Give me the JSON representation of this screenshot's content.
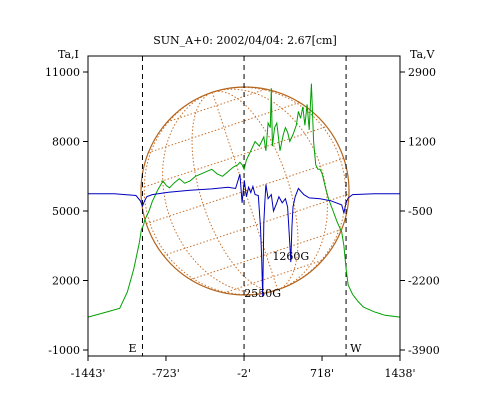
{
  "chart_data": {
    "type": "line",
    "title": "SUN_A+0: 2002/04/04: 2.67[cm]",
    "left_axis_label": "Ta,I",
    "right_axis_label": "Ta,V",
    "x_ticks": [
      {
        "value": -1443,
        "label": "-1443'"
      },
      {
        "value": -723,
        "label": "-723'"
      },
      {
        "value": -2,
        "label": "-2'"
      },
      {
        "value": 718,
        "label": "718'"
      },
      {
        "value": 1438,
        "label": "1438'"
      }
    ],
    "left_ticks": [
      {
        "value": -1000,
        "label": "-1000"
      },
      {
        "value": 2000,
        "label": "2000"
      },
      {
        "value": 5000,
        "label": "5000"
      },
      {
        "value": 8000,
        "label": "8000"
      },
      {
        "value": 11000,
        "label": "11000"
      }
    ],
    "right_ticks": [
      {
        "value": -3900,
        "label": "-3900"
      },
      {
        "value": -2200,
        "label": "-2200"
      },
      {
        "value": -500,
        "label": "-500"
      },
      {
        "value": 1200,
        "label": "1200"
      },
      {
        "value": 2900,
        "label": "2900"
      }
    ],
    "xlim": [
      -1443,
      1438
    ],
    "ylim_left": [
      -1000,
      11000
    ],
    "ylim_right": [
      -3900,
      2900
    ],
    "limb_markers": [
      {
        "x": -940,
        "label": "E"
      },
      {
        "x": 940,
        "label": "W"
      }
    ],
    "center_line_x": -2,
    "grid": false,
    "annotations": [
      {
        "text": "2550G",
        "x": 170,
        "y_right": -2600
      },
      {
        "text": "1260G",
        "x": 430,
        "y_right": -1700
      }
    ],
    "series": [
      {
        "axis": "left",
        "color": "#00a000",
        "x": [
          -1443,
          -1300,
          -1150,
          -1080,
          -1020,
          -970,
          -950,
          -930,
          -920,
          -880,
          -850,
          -800,
          -750,
          -720,
          -690,
          -650,
          -600,
          -550,
          -500,
          -450,
          -400,
          -350,
          -300,
          -250,
          -200,
          -150,
          -100,
          -60,
          -40,
          -20,
          -2,
          20,
          40,
          60,
          100,
          140,
          180,
          200,
          220,
          240,
          250,
          260,
          280,
          300,
          330,
          360,
          380,
          400,
          420,
          450,
          480,
          500,
          520,
          540,
          560,
          580,
          600,
          620,
          640,
          660,
          680,
          700,
          720,
          750,
          780,
          820,
          860,
          900,
          920,
          940,
          960,
          1000,
          1050,
          1100,
          1200,
          1300,
          1438
        ],
        "values": [
          420,
          600,
          800,
          1500,
          2500,
          3600,
          4200,
          4400,
          4600,
          5000,
          5400,
          5900,
          6300,
          6100,
          6000,
          6200,
          6400,
          6200,
          6300,
          6500,
          6600,
          6700,
          6800,
          6600,
          6500,
          6700,
          6900,
          7000,
          7100,
          7000,
          6800,
          7200,
          7400,
          7600,
          8000,
          7800,
          8200,
          7600,
          8800,
          8600,
          10300,
          7800,
          8600,
          8800,
          7600,
          8300,
          8600,
          8400,
          8000,
          8300,
          8700,
          9300,
          9000,
          9500,
          8700,
          9600,
          8500,
          10500,
          8000,
          7000,
          6800,
          6800,
          6600,
          6000,
          5500,
          5000,
          4500,
          4100,
          3500,
          2500,
          1800,
          1400,
          1100,
          850,
          650,
          500,
          420
        ]
      },
      {
        "axis": "right",
        "color": "#0000c0",
        "x": [
          -1443,
          -1200,
          -1000,
          -960,
          -940,
          -920,
          -900,
          -850,
          -700,
          -500,
          -300,
          -150,
          -80,
          -40,
          -20,
          0,
          20,
          40,
          60,
          80,
          100,
          130,
          150,
          160,
          170,
          180,
          190,
          200,
          220,
          250,
          270,
          300,
          320,
          350,
          380,
          400,
          420,
          430,
          440,
          450,
          470,
          500,
          550,
          600,
          700,
          800,
          900,
          920,
          940,
          960,
          1000,
          1200,
          1438
        ],
        "values": [
          -80,
          -80,
          -120,
          -250,
          -380,
          -250,
          -150,
          -100,
          -40,
          10,
          40,
          80,
          50,
          400,
          -300,
          250,
          -150,
          80,
          -50,
          100,
          -100,
          -120,
          -900,
          -1600,
          -2600,
          -800,
          -300,
          150,
          -200,
          -100,
          -500,
          -300,
          -150,
          -300,
          -200,
          -400,
          -1300,
          -1750,
          -900,
          -400,
          -150,
          50,
          -100,
          -180,
          -200,
          -250,
          -350,
          -550,
          -300,
          -180,
          -100,
          -80,
          -80
        ]
      }
    ]
  }
}
